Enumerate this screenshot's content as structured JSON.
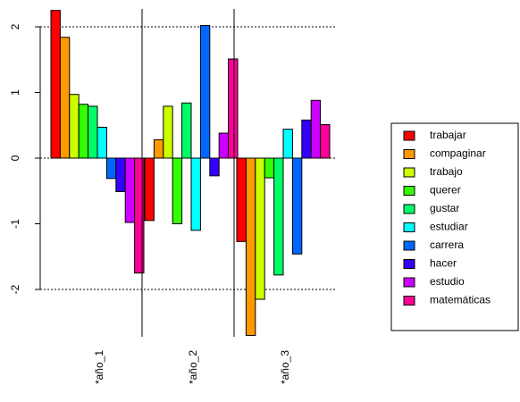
{
  "chart_data": {
    "type": "bar",
    "title": "",
    "xlabel": "",
    "ylabel": "",
    "ylim": [
      -2.75,
      2.25
    ],
    "y_ticks": [
      "2",
      "1",
      "0",
      "-1",
      "-2"
    ],
    "y_tick_values": [
      2,
      1,
      0,
      -1,
      -2
    ],
    "dashed_gridlines_at": [
      2,
      0,
      -2
    ],
    "legend_position": "right",
    "groups": [
      "*año_1",
      "*año_2",
      "*año_3"
    ],
    "series": [
      {
        "name": "trabajar",
        "color": "#ff0000",
        "values": [
          2.25,
          -0.95,
          -1.27
        ]
      },
      {
        "name": "compaginar",
        "color": "#ff9900",
        "values": [
          1.84,
          0.28,
          -2.7
        ]
      },
      {
        "name": "trabajo",
        "color": "#ccff00",
        "values": [
          0.97,
          0.79,
          -2.15
        ]
      },
      {
        "name": "querer",
        "color": "#33ff00",
        "values": [
          0.82,
          -1.0,
          -0.3
        ]
      },
      {
        "name": "gustar",
        "color": "#00ff66",
        "values": [
          0.79,
          0.84,
          -1.78
        ]
      },
      {
        "name": "estudiar",
        "color": "#00ffff",
        "values": [
          0.47,
          -1.1,
          0.44
        ]
      },
      {
        "name": "carrera",
        "color": "#0066ff",
        "values": [
          -0.31,
          2.02,
          -1.46
        ]
      },
      {
        "name": "hacer",
        "color": "#3300ff",
        "values": [
          -0.51,
          -0.27,
          0.58
        ]
      },
      {
        "name": "estudio",
        "color": "#cc00ff",
        "values": [
          -0.98,
          0.38,
          0.88
        ]
      },
      {
        "name": "matemáticas",
        "color": "#ff0099",
        "values": [
          -1.75,
          1.51,
          0.51
        ]
      }
    ]
  }
}
